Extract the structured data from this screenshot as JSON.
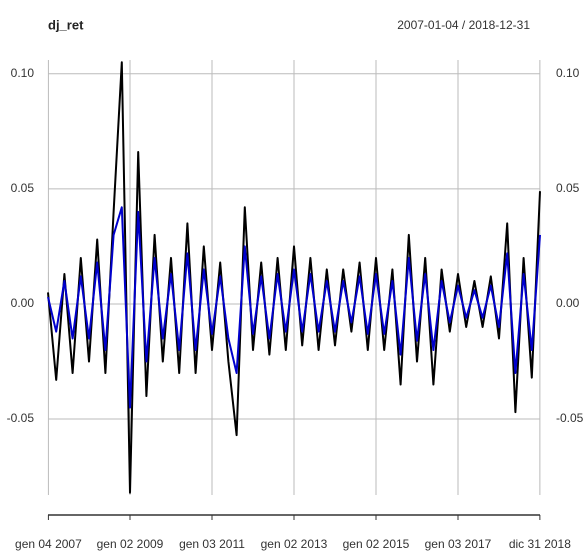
{
  "chart_data": {
    "type": "line",
    "title": "dj_ret",
    "subtitle": "2007-01-04 / 2018-12-31",
    "x": [
      2007.0,
      2007.2,
      2007.4,
      2007.6,
      2007.8,
      2008.0,
      2008.2,
      2008.4,
      2008.6,
      2008.8,
      2009.0,
      2009.2,
      2009.4,
      2009.6,
      2009.8,
      2010.0,
      2010.2,
      2010.4,
      2010.6,
      2010.8,
      2011.0,
      2011.2,
      2011.4,
      2011.6,
      2011.8,
      2012.0,
      2012.2,
      2012.4,
      2012.6,
      2012.8,
      2013.0,
      2013.2,
      2013.4,
      2013.6,
      2013.8,
      2014.0,
      2014.2,
      2014.4,
      2014.6,
      2014.8,
      2015.0,
      2015.2,
      2015.4,
      2015.6,
      2015.8,
      2016.0,
      2016.2,
      2016.4,
      2016.6,
      2016.8,
      2017.0,
      2017.2,
      2017.4,
      2017.6,
      2017.8,
      2018.0,
      2018.2,
      2018.4,
      2018.6,
      2018.8,
      2019.0
    ],
    "series": [
      {
        "color": "#000000",
        "values": [
          0.005,
          -0.033,
          0.013,
          -0.03,
          0.02,
          -0.025,
          0.028,
          -0.03,
          0.04,
          0.105,
          -0.082,
          0.066,
          -0.04,
          0.03,
          -0.025,
          0.02,
          -0.03,
          0.035,
          -0.03,
          0.025,
          -0.02,
          0.018,
          -0.025,
          -0.057,
          0.042,
          -0.02,
          0.018,
          -0.022,
          0.02,
          -0.02,
          0.025,
          -0.018,
          0.02,
          -0.02,
          0.015,
          -0.018,
          0.015,
          -0.012,
          0.018,
          -0.02,
          0.02,
          -0.02,
          0.015,
          -0.035,
          0.03,
          -0.025,
          0.02,
          -0.035,
          0.015,
          -0.012,
          0.013,
          -0.01,
          0.01,
          -0.01,
          0.012,
          -0.015,
          0.035,
          -0.047,
          0.02,
          -0.032,
          0.049
        ]
      },
      {
        "color": "#0000cc",
        "values": [
          0.003,
          -0.012,
          0.01,
          -0.015,
          0.012,
          -0.015,
          0.018,
          -0.02,
          0.03,
          0.042,
          -0.045,
          0.04,
          -0.025,
          0.02,
          -0.015,
          0.013,
          -0.02,
          0.022,
          -0.02,
          0.015,
          -0.013,
          0.012,
          -0.015,
          -0.03,
          0.025,
          -0.013,
          0.012,
          -0.015,
          0.013,
          -0.012,
          0.015,
          -0.012,
          0.013,
          -0.012,
          0.01,
          -0.012,
          0.01,
          -0.008,
          0.012,
          -0.013,
          0.013,
          -0.013,
          0.01,
          -0.022,
          0.02,
          -0.016,
          0.013,
          -0.02,
          0.01,
          -0.008,
          0.008,
          -0.006,
          0.006,
          -0.006,
          0.008,
          -0.01,
          0.022,
          -0.03,
          0.013,
          -0.02,
          0.03
        ]
      }
    ],
    "xlim": [
      2007.0,
      2019.0
    ],
    "xticks": [
      {
        "value": 2007.01,
        "label": "gen 04 2007"
      },
      {
        "value": 2009.0,
        "label": "gen 02 2009"
      },
      {
        "value": 2011.0,
        "label": "gen 03 2011"
      },
      {
        "value": 2013.0,
        "label": "gen 02 2013"
      },
      {
        "value": 2015.0,
        "label": "gen 02 2015"
      },
      {
        "value": 2017.0,
        "label": "gen 03 2017"
      },
      {
        "value": 2018.997,
        "label": "dic 31 2018"
      }
    ],
    "ylim": [
      -0.083,
      0.106
    ],
    "yticks": [
      {
        "value": -0.05,
        "label": "-0.05"
      },
      {
        "value": 0,
        "label": "0.00"
      },
      {
        "value": 0.05,
        "label": "0.05"
      },
      {
        "value": 0.1,
        "label": "0.10"
      }
    ],
    "grid": true
  }
}
